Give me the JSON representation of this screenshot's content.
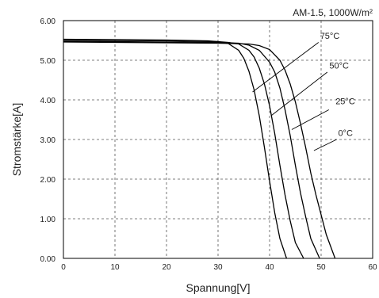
{
  "chart_data": {
    "type": "line",
    "title": "",
    "annotation": "AM-1.5, 1000W/m²",
    "xlabel": "Spannung[V]",
    "ylabel": "Stromstärke[A]",
    "xlim": [
      0,
      60
    ],
    "ylim": [
      0,
      6
    ],
    "x_ticks": [
      "0",
      "10",
      "20",
      "30",
      "40",
      "50",
      "60"
    ],
    "y_ticks": [
      "0.00",
      "1.00",
      "2.00",
      "3.00",
      "4.00",
      "5.00",
      "6.00"
    ],
    "grid": true,
    "series": [
      {
        "name": "75°C",
        "x": [
          0,
          10,
          20,
          28,
          30,
          32,
          34,
          35,
          36,
          37,
          38,
          39,
          40,
          41,
          42,
          43.3
        ],
        "y": [
          5.53,
          5.52,
          5.51,
          5.49,
          5.47,
          5.42,
          5.25,
          5.05,
          4.72,
          4.25,
          3.6,
          2.8,
          1.95,
          1.15,
          0.5,
          0
        ]
      },
      {
        "name": "50°C",
        "x": [
          0,
          10,
          20,
          30,
          32,
          34,
          36,
          37,
          38,
          39,
          40,
          41,
          42,
          43,
          44,
          45,
          46.6
        ],
        "y": [
          5.51,
          5.5,
          5.49,
          5.47,
          5.45,
          5.41,
          5.25,
          5.08,
          4.8,
          4.4,
          3.85,
          3.15,
          2.35,
          1.6,
          0.95,
          0.4,
          0
        ]
      },
      {
        "name": "25°C",
        "x": [
          0,
          10,
          20,
          30,
          34,
          36,
          38,
          40,
          41,
          42,
          43,
          44,
          45,
          46,
          47,
          48,
          49.7
        ],
        "y": [
          5.48,
          5.47,
          5.46,
          5.45,
          5.43,
          5.38,
          5.25,
          4.95,
          4.7,
          4.3,
          3.75,
          3.1,
          2.35,
          1.65,
          1.05,
          0.5,
          0
        ]
      },
      {
        "name": "0°C",
        "x": [
          0,
          10,
          20,
          30,
          36,
          38,
          40,
          42,
          43,
          44,
          45,
          46,
          47,
          48,
          49,
          50,
          51,
          52.7
        ],
        "y": [
          5.46,
          5.45,
          5.44,
          5.43,
          5.41,
          5.37,
          5.27,
          5.0,
          4.75,
          4.4,
          3.95,
          3.4,
          2.8,
          2.15,
          1.6,
          1.1,
          0.6,
          0
        ]
      }
    ]
  }
}
